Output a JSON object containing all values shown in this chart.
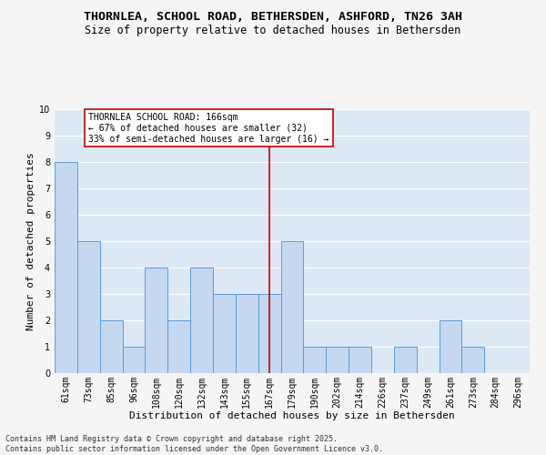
{
  "title": "THORNLEA, SCHOOL ROAD, BETHERSDEN, ASHFORD, TN26 3AH",
  "subtitle": "Size of property relative to detached houses in Bethersden",
  "xlabel": "Distribution of detached houses by size in Bethersden",
  "ylabel": "Number of detached properties",
  "categories": [
    "61sqm",
    "73sqm",
    "85sqm",
    "96sqm",
    "108sqm",
    "120sqm",
    "132sqm",
    "143sqm",
    "155sqm",
    "167sqm",
    "179sqm",
    "190sqm",
    "202sqm",
    "214sqm",
    "226sqm",
    "237sqm",
    "249sqm",
    "261sqm",
    "273sqm",
    "284sqm",
    "296sqm"
  ],
  "values": [
    8,
    5,
    2,
    1,
    4,
    2,
    4,
    3,
    3,
    3,
    5,
    1,
    1,
    1,
    0,
    1,
    0,
    2,
    1,
    0,
    0
  ],
  "bar_color": "#c5d8f0",
  "bar_edge_color": "#5b9bd5",
  "highlight_index": 9,
  "highlight_line_color": "#cc0000",
  "annotation_text": "THORNLEA SCHOOL ROAD: 166sqm\n← 67% of detached houses are smaller (32)\n33% of semi-detached houses are larger (16) →",
  "annotation_box_color": "#ffffff",
  "annotation_box_edge_color": "#cc0000",
  "ylim": [
    0,
    10
  ],
  "yticks": [
    0,
    1,
    2,
    3,
    4,
    5,
    6,
    7,
    8,
    9,
    10
  ],
  "footnote": "Contains HM Land Registry data © Crown copyright and database right 2025.\nContains public sector information licensed under the Open Government Licence v3.0.",
  "plot_bg_color": "#dce9f5",
  "fig_bg_color": "#f5f5f5",
  "grid_color": "#ffffff",
  "title_fontsize": 9.5,
  "subtitle_fontsize": 8.5,
  "axis_label_fontsize": 8,
  "tick_fontsize": 7,
  "footnote_fontsize": 6,
  "annotation_fontsize": 7
}
